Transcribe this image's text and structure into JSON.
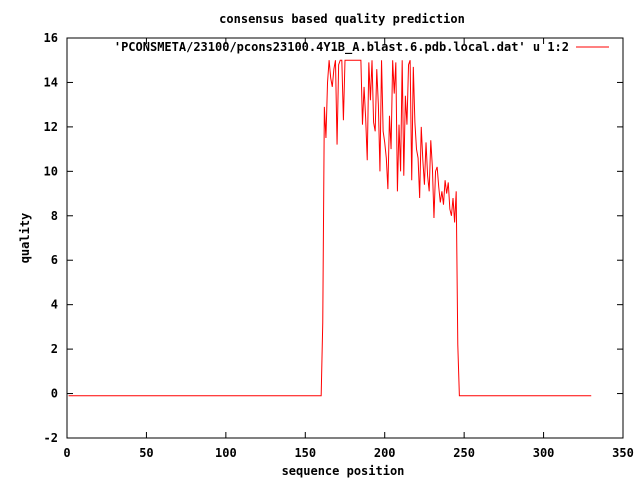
{
  "chart_data": {
    "type": "line",
    "title": "consensus based quality prediction",
    "xlabel": "sequence position",
    "ylabel": "quality",
    "xlim": [
      0,
      350
    ],
    "ylim": [
      -2,
      16
    ],
    "x_ticks": [
      0,
      50,
      100,
      150,
      200,
      250,
      300,
      350
    ],
    "y_ticks": [
      -2,
      0,
      2,
      4,
      6,
      8,
      10,
      12,
      14,
      16
    ],
    "legend_position": "top-right",
    "line_color": "#ff0000",
    "series": [
      {
        "name": "'PCONSMETA/23100/pcons23100.4Y1B_A.blast.6.pdb.local.dat' u 1:2",
        "x": [
          1,
          160,
          161,
          162,
          163,
          164,
          165,
          166,
          167,
          168,
          169,
          170,
          171,
          172,
          173,
          174,
          175,
          176,
          177,
          178,
          179,
          180,
          181,
          182,
          183,
          184,
          185,
          186,
          187,
          188,
          189,
          190,
          191,
          192,
          193,
          194,
          195,
          196,
          197,
          198,
          199,
          200,
          201,
          202,
          203,
          204,
          205,
          206,
          207,
          208,
          209,
          210,
          211,
          212,
          213,
          214,
          215,
          216,
          217,
          218,
          219,
          220,
          221,
          222,
          223,
          224,
          225,
          226,
          227,
          228,
          229,
          230,
          231,
          232,
          233,
          234,
          235,
          236,
          237,
          238,
          239,
          240,
          241,
          242,
          243,
          244,
          245,
          246,
          247,
          248,
          249,
          250,
          251,
          252,
          253,
          330
        ],
        "y": [
          -0.1,
          -0.1,
          3.2,
          12.9,
          11.5,
          14.0,
          15.0,
          14.2,
          13.8,
          14.6,
          15.0,
          11.2,
          14.8,
          15.0,
          15.0,
          12.3,
          15.0,
          15.0,
          15.0,
          15.0,
          15.0,
          15.0,
          15.0,
          15.0,
          15.0,
          15.0,
          15.0,
          12.1,
          13.8,
          12.4,
          10.5,
          14.9,
          13.2,
          15.0,
          12.2,
          11.8,
          14.6,
          13.0,
          10.0,
          15.0,
          11.8,
          11.3,
          10.6,
          9.2,
          12.5,
          11.0,
          15.0,
          13.5,
          14.9,
          9.1,
          12.1,
          10.0,
          15.0,
          9.8,
          13.4,
          12.1,
          14.8,
          15.0,
          9.6,
          14.7,
          12.2,
          11.0,
          10.6,
          8.8,
          12.0,
          10.5,
          9.4,
          11.3,
          9.8,
          9.1,
          11.4,
          10.2,
          7.9,
          10.0,
          10.2,
          9.3,
          8.6,
          9.1,
          8.5,
          9.6,
          9.0,
          9.5,
          8.3,
          8.0,
          8.8,
          7.7,
          9.1,
          2.2,
          -0.1,
          -0.1,
          -0.1,
          -0.1,
          -0.1,
          -0.1,
          -0.1,
          -0.1
        ]
      }
    ]
  }
}
